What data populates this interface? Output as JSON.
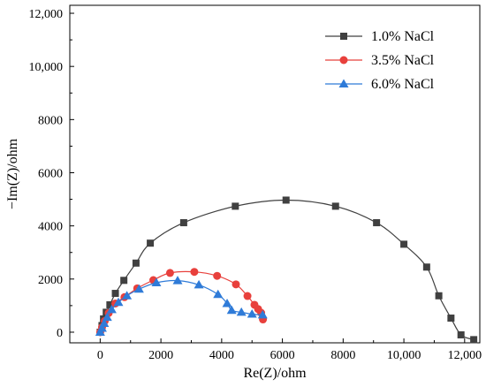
{
  "chart_data": {
    "type": "scatter",
    "xlabel": "Re(Z)/ohm",
    "ylabel": "−Im(Z)/ohm",
    "xlim": [
      -1000,
      12500
    ],
    "ylim": [
      -400,
      12300
    ],
    "xticks": [
      0,
      2000,
      4000,
      6000,
      8000,
      10000,
      12000
    ],
    "xtick_labels": [
      "0",
      "2000",
      "4000",
      "6000",
      "8000",
      "10,000",
      "12,000"
    ],
    "yticks": [
      0,
      2000,
      4000,
      6000,
      8000,
      10000,
      12000
    ],
    "ytick_labels": [
      "0",
      "2000",
      "4000",
      "6000",
      "8000",
      "10,000",
      "12,000"
    ],
    "grid": false,
    "legend_position": "top-right",
    "series": [
      {
        "name": "1.0% NaCl",
        "color": "#404040",
        "marker": "square",
        "points": [
          [
            0,
            0
          ],
          [
            60,
            250
          ],
          [
            110,
            500
          ],
          [
            200,
            750
          ],
          [
            320,
            1030
          ],
          [
            500,
            1460
          ],
          [
            780,
            1950
          ],
          [
            1180,
            2600
          ],
          [
            1650,
            3350
          ],
          [
            2750,
            4120
          ],
          [
            4450,
            4740
          ],
          [
            6120,
            4970
          ],
          [
            7750,
            4740
          ],
          [
            9100,
            4120
          ],
          [
            10000,
            3310
          ],
          [
            10750,
            2450
          ],
          [
            11150,
            1370
          ],
          [
            11550,
            530
          ],
          [
            11880,
            -100
          ],
          [
            12300,
            -280
          ]
        ]
      },
      {
        "name": "3.5% NaCl",
        "color": "#e8403c",
        "marker": "circle",
        "points": [
          [
            0,
            0
          ],
          [
            60,
            180
          ],
          [
            150,
            420
          ],
          [
            280,
            720
          ],
          [
            500,
            1080
          ],
          [
            800,
            1320
          ],
          [
            1220,
            1650
          ],
          [
            1750,
            1960
          ],
          [
            2300,
            2230
          ],
          [
            3100,
            2270
          ],
          [
            3850,
            2120
          ],
          [
            4470,
            1800
          ],
          [
            4850,
            1360
          ],
          [
            5080,
            1030
          ],
          [
            5200,
            870
          ],
          [
            5300,
            730
          ],
          [
            5360,
            480
          ]
        ]
      },
      {
        "name": "6.0% NaCl",
        "color": "#2f7bd8",
        "marker": "triangle",
        "points": [
          [
            0,
            0
          ],
          [
            60,
            150
          ],
          [
            130,
            330
          ],
          [
            230,
            560
          ],
          [
            380,
            850
          ],
          [
            600,
            1120
          ],
          [
            880,
            1370
          ],
          [
            1280,
            1620
          ],
          [
            1850,
            1860
          ],
          [
            2550,
            1940
          ],
          [
            3250,
            1780
          ],
          [
            3880,
            1420
          ],
          [
            4180,
            1080
          ],
          [
            4330,
            820
          ],
          [
            4650,
            750
          ],
          [
            5000,
            680
          ],
          [
            5350,
            650
          ]
        ]
      }
    ]
  }
}
